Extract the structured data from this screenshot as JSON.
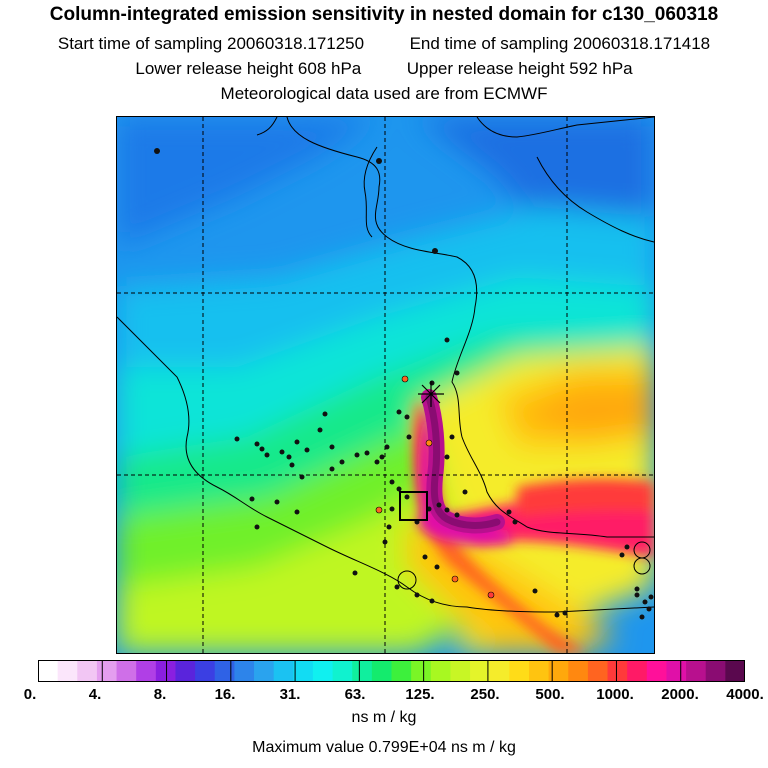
{
  "title": "Column-integrated emission sensitivity in nested domain for c130_060318",
  "start_label": "Start time of sampling",
  "start_value": "20060318.171250",
  "end_label": "End time of sampling",
  "end_value": "20060318.171418",
  "lower_label": "Lower release height",
  "lower_value": "608 hPa",
  "upper_label": "Upper release height",
  "upper_value": "592 hPa",
  "met_line": "Meteorological data used are from ECMWF",
  "colorbar": {
    "ticks": [
      "0.",
      "4.",
      "8.",
      "16.",
      "31.",
      "63.",
      "125.",
      "250.",
      "500.",
      "1000.",
      "2000.",
      "4000."
    ],
    "colors": [
      "#ffffff",
      "#fbe6fb",
      "#f2c6f4",
      "#e49eef",
      "#cf6fe8",
      "#b03fe6",
      "#8a1fe0",
      "#5a24dc",
      "#3b3fe3",
      "#2f62e6",
      "#2d84ea",
      "#2aa3ee",
      "#1bc2f2",
      "#12dcf3",
      "#10f0f0",
      "#10f2cf",
      "#10ef9e",
      "#14eb6d",
      "#3df03c",
      "#7af526",
      "#a8f821",
      "#c8f625",
      "#e4f42a",
      "#f5ec2b",
      "#ffdc18",
      "#ffc410",
      "#ffa80c",
      "#ff8810",
      "#ff6420",
      "#ff3a3a",
      "#ff1a66",
      "#ff109a",
      "#e010a8",
      "#b8108e",
      "#8a0c72",
      "#5a084e"
    ],
    "units": "ns m / kg"
  },
  "max_label": "Maximum value",
  "max_value": "0.799E+04 ns m / kg"
}
